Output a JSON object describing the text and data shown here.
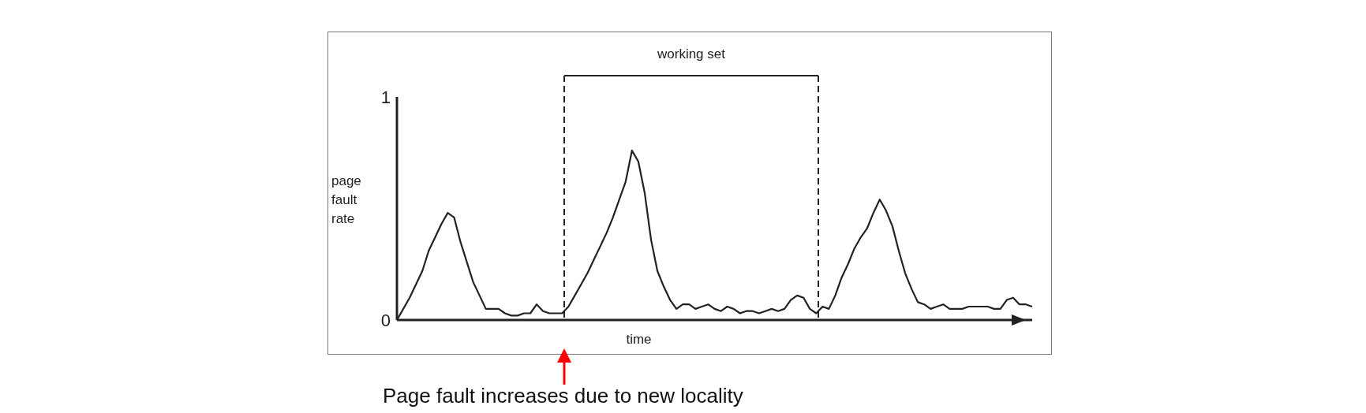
{
  "chart_data": {
    "type": "line",
    "xlabel": "time",
    "ylabel": "page fault rate",
    "color": "#222222",
    "marker": "none",
    "tick_labels": "y",
    "ylim": [
      0,
      1
    ],
    "yticks": [
      0,
      1
    ],
    "categories": [
      null,
      null,
      null,
      null,
      null,
      null,
      null,
      null,
      null,
      null,
      null,
      null,
      null,
      null,
      null,
      null,
      null,
      null,
      null,
      null,
      null,
      null,
      null,
      null,
      null,
      null,
      null,
      null,
      null,
      null,
      null,
      null,
      null,
      null,
      null,
      null,
      null,
      null,
      null,
      null,
      null,
      null,
      null,
      null,
      null,
      null,
      null,
      null,
      null,
      null,
      null,
      null,
      null,
      null,
      null,
      null,
      null,
      null,
      null,
      null,
      null,
      null,
      null,
      null,
      null,
      null,
      null,
      null,
      null,
      null,
      null,
      null,
      null,
      null,
      null,
      null,
      null,
      null,
      null,
      null,
      null,
      null,
      null,
      null,
      null,
      null,
      null,
      null,
      null,
      null,
      null,
      null,
      null,
      null,
      null,
      null,
      null,
      null,
      null,
      null,
      null
    ],
    "values": [
      0,
      0.05,
      0.1,
      0.16,
      0.22,
      0.31,
      0.37,
      0.43,
      0.48,
      0.46,
      0.35,
      0.26,
      0.17,
      0.11,
      0.05,
      0.05,
      0.05,
      0.03,
      0.02,
      0.02,
      0.03,
      0.03,
      0.07,
      0.04,
      0.03,
      0.03,
      0.03,
      0.06,
      0.11,
      0.16,
      0.21,
      0.27,
      0.33,
      0.39,
      0.46,
      0.54,
      0.62,
      0.76,
      0.71,
      0.57,
      0.36,
      0.22,
      0.15,
      0.09,
      0.05,
      0.07,
      0.07,
      0.05,
      0.06,
      0.07,
      0.05,
      0.04,
      0.06,
      0.05,
      0.03,
      0.04,
      0.04,
      0.03,
      0.04,
      0.05,
      0.04,
      0.05,
      0.09,
      0.11,
      0.1,
      0.05,
      0.03,
      0.06,
      0.05,
      0.11,
      0.19,
      0.25,
      0.32,
      0.37,
      0.41,
      0.48,
      0.54,
      0.49,
      0.42,
      0.31,
      0.21,
      0.14,
      0.08,
      0.07,
      0.05,
      0.06,
      0.07,
      0.05,
      0.05,
      0.05,
      0.06,
      0.06,
      0.06,
      0.06,
      0.05,
      0.05,
      0.09,
      0.1,
      0.07,
      0.07,
      0.06
    ],
    "annotations": [
      "working set",
      "Page fault increases due to new locality"
    ]
  }
}
